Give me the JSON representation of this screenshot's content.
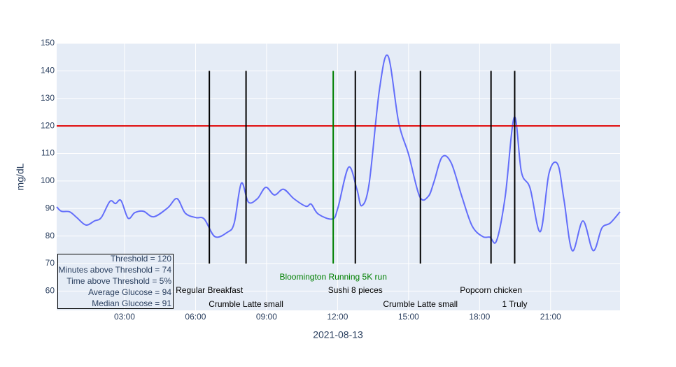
{
  "chart_data": {
    "type": "line",
    "x_label": "2021-08-13",
    "y_label": "mg/dL",
    "x": [
      "00:08",
      "00:20",
      "00:41",
      "00:59",
      "01:22",
      "01:44",
      "02:01",
      "02:23",
      "02:37",
      "02:51",
      "03:09",
      "03:26",
      "03:48",
      "04:14",
      "04:50",
      "05:13",
      "05:34",
      "06:01",
      "06:22",
      "06:49",
      "07:21",
      "07:38",
      "07:56",
      "08:14",
      "08:37",
      "08:58",
      "09:20",
      "09:43",
      "10:09",
      "10:40",
      "10:53",
      "11:11",
      "11:47",
      "12:01",
      "12:28",
      "12:49",
      "13:01",
      "13:20",
      "13:46",
      "14:08",
      "14:35",
      "15:00",
      "15:28",
      "15:50",
      "16:04",
      "16:25",
      "16:48",
      "17:15",
      "17:41",
      "18:08",
      "18:26",
      "18:43",
      "19:05",
      "19:28",
      "19:46",
      "20:08",
      "20:34",
      "20:56",
      "21:18",
      "21:34",
      "21:55",
      "22:22",
      "22:48",
      "23:10",
      "23:31",
      "23:56"
    ],
    "series": [
      {
        "color": "#636efa",
        "values": [
          90.6,
          89,
          88.8,
          86.7,
          84,
          85.5,
          86.7,
          92.6,
          91.8,
          92.9,
          86.5,
          88.5,
          89,
          87,
          90.3,
          93.6,
          88.3,
          86.7,
          86.2,
          79.8,
          81.4,
          84.7,
          99.2,
          92.3,
          93.6,
          97.7,
          94.9,
          97,
          93.6,
          90.8,
          91.6,
          88,
          86.2,
          90.3,
          105,
          97,
          91,
          99,
          133,
          145.4,
          121.2,
          109.7,
          94.4,
          94.4,
          99.5,
          108.7,
          106.6,
          94.4,
          83.7,
          79.8,
          79.6,
          78.3,
          94.4,
          123.2,
          103.3,
          97.4,
          81.6,
          102.8,
          106.1,
          93.1,
          74.7,
          85.5,
          74.7,
          82.9,
          84.7,
          88.8
        ]
      }
    ],
    "xlim": [
      "00:08",
      "23:56"
    ],
    "ylim": [
      53,
      150
    ],
    "xticks": [
      "03:00",
      "06:00",
      "09:00",
      "12:00",
      "15:00",
      "18:00",
      "21:00"
    ],
    "yticks": [
      60,
      70,
      80,
      90,
      100,
      110,
      120,
      130,
      140,
      150
    ],
    "grid": true,
    "threshold": {
      "value": 120,
      "color": "#e00000"
    },
    "event_line_range": [
      70,
      140
    ],
    "events": [
      {
        "time": "06:35",
        "label": "Regular Breakfast",
        "color": "#000000"
      },
      {
        "time": "08:08",
        "label": "Crumble Latte small",
        "color": "#000000"
      },
      {
        "time": "11:49",
        "label": "Bloomington Running 5K run",
        "color": "#008000"
      },
      {
        "time": "12:45",
        "label": "Sushi 8 pieces",
        "color": "#000000"
      },
      {
        "time": "15:30",
        "label": "Crumble Latte small",
        "color": "#000000"
      },
      {
        "time": "18:29",
        "label": "Popcorn chicken",
        "color": "#000000"
      },
      {
        "time": "19:29",
        "label": "1 Truly",
        "color": "#000000"
      }
    ],
    "stats": [
      "Threshold = 120",
      "Minutes above Threshold = 74",
      "Time above Threshold = 5%",
      "Average Glucose = 94",
      "Median Glucose = 91"
    ]
  }
}
